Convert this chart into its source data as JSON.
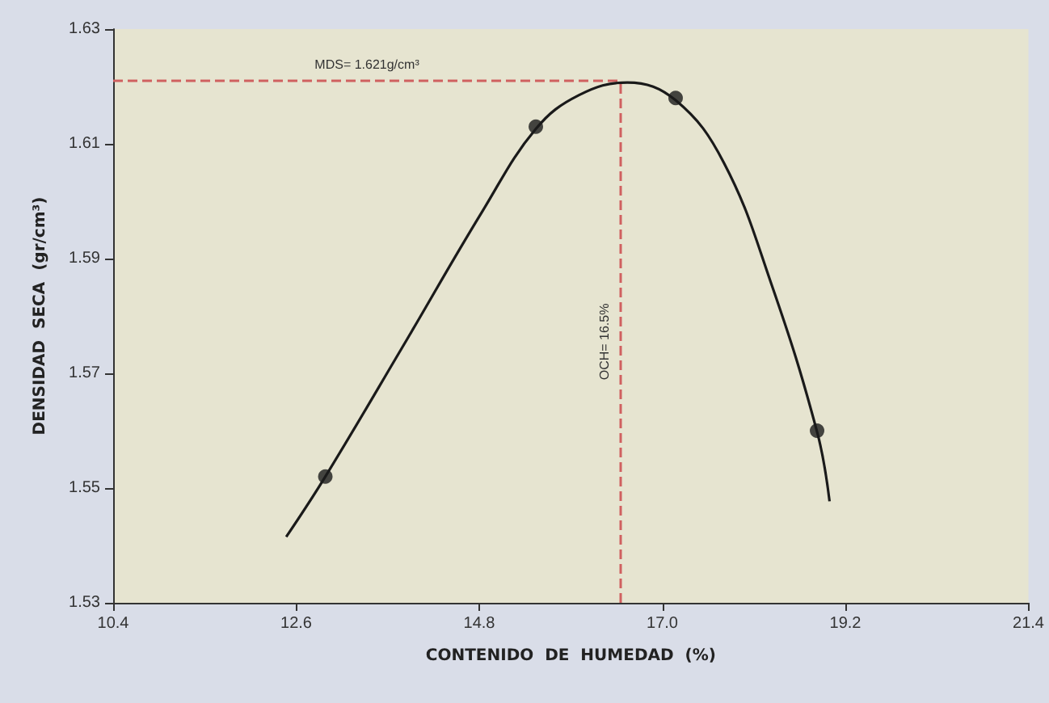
{
  "chart_data": {
    "type": "scatter",
    "xlabel": "CONTENIDO  DE  HUMEDAD  (%)",
    "ylabel": "DENSIDAD  SECA  (gr/cm³)",
    "series": [
      {
        "color": "#1a1a1a",
        "marker": "circle",
        "x": [
          12.95,
          15.48,
          17.16,
          18.86
        ],
        "values": [
          1.552,
          1.613,
          1.618,
          1.56
        ]
      },
      {
        "type": "line",
        "color": "#1a1a1a",
        "marker": "none",
        "line_style": "solid",
        "x": [
          12.48,
          12.95,
          13.87,
          14.84,
          15.48,
          16.0,
          16.58,
          17.16,
          17.74,
          18.31,
          18.86,
          19.01
        ],
        "values": [
          1.5415,
          1.552,
          1.5744,
          1.5983,
          1.6126,
          1.6185,
          1.6207,
          1.6176,
          1.6067,
          1.5856,
          1.5598,
          1.5477
        ]
      }
    ],
    "ref_lines": [
      {
        "axis": "y",
        "value": 1.621,
        "label": "MDS= 1.621g/cm³",
        "color": "#d06060",
        "line_style": "dashed"
      },
      {
        "axis": "x",
        "value": 16.5,
        "label": "OCH= 16.5%",
        "color": "#d06060",
        "line_style": "dashed"
      }
    ],
    "xlim": [
      10.4,
      21.4
    ],
    "xticks": [
      10.4,
      12.6,
      14.8,
      {
        "value": 17,
        "label": "17.0"
      },
      19.2,
      21.4
    ],
    "ylim": [
      1.53,
      1.63
    ],
    "yticks": [
      1.53,
      1.55,
      1.57,
      1.59,
      1.61,
      1.63
    ],
    "grid": false
  }
}
